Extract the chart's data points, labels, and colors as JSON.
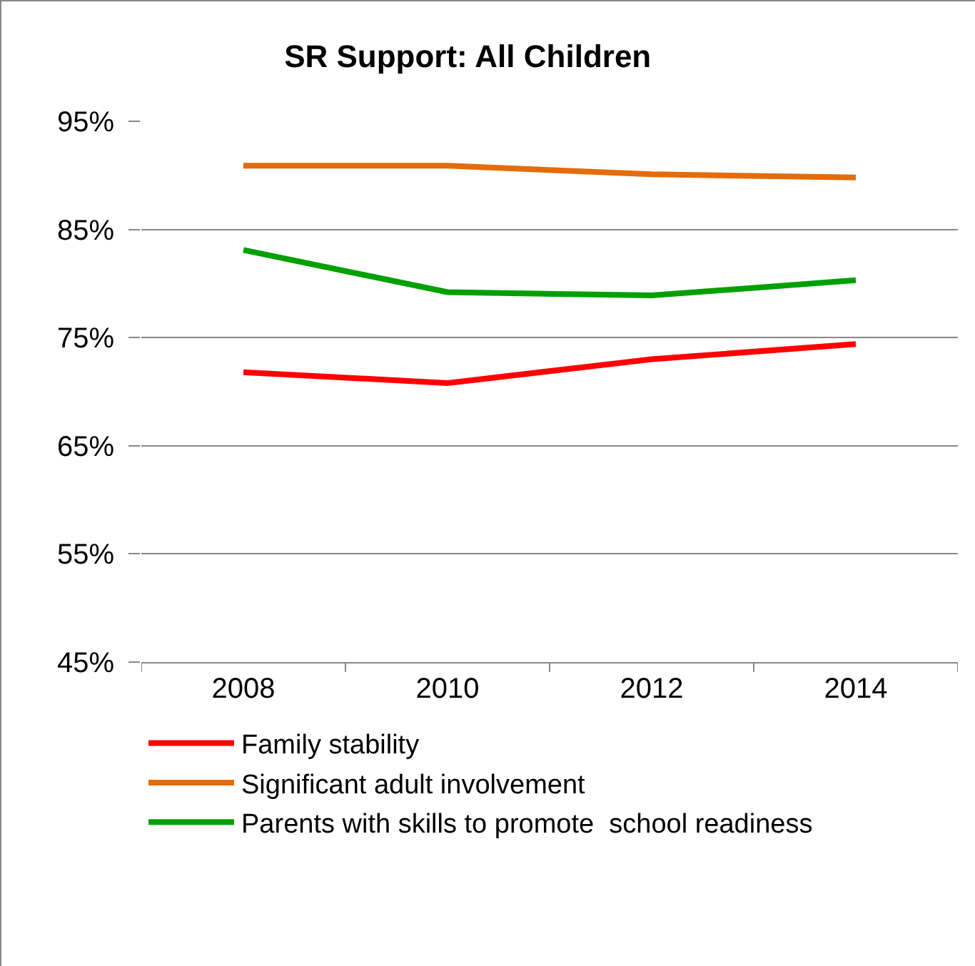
{
  "chart_data": {
    "type": "line",
    "title": "SR Support: All Children",
    "categories": [
      "2008",
      "2010",
      "2012",
      "2014"
    ],
    "series": [
      {
        "name": "Family stability",
        "color": "#ff0000",
        "values": [
          71.8,
          70.8,
          73.0,
          74.4
        ]
      },
      {
        "name": "Significant adult involvement",
        "color": "#e46c0a",
        "values": [
          90.9,
          90.9,
          90.1,
          89.8
        ]
      },
      {
        "name": "Parents with skills to promote  school readiness",
        "color": "#00a000",
        "values": [
          83.1,
          79.2,
          78.9,
          80.3
        ]
      }
    ],
    "ylim": [
      45,
      95
    ],
    "yticks": [
      {
        "value": 45,
        "label": "45%"
      },
      {
        "value": 55,
        "label": "55%"
      },
      {
        "value": 65,
        "label": "65%"
      },
      {
        "value": 75,
        "label": "75%"
      },
      {
        "value": 85,
        "label": "85%"
      },
      {
        "value": 95,
        "label": "95%"
      }
    ],
    "grid": "y",
    "legend": "bottom",
    "marker": "none",
    "line_style": "solid"
  }
}
